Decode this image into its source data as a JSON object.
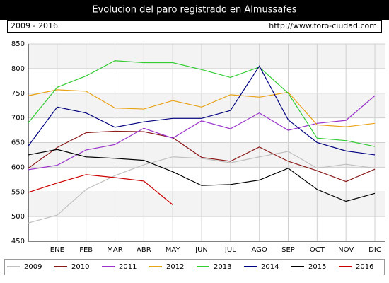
{
  "chart_data": {
    "type": "line",
    "title": "Evolucion del paro registrado en Almussafes",
    "subtitle": "2009 - 2016",
    "source": "http://www.foro-ciudad.com",
    "categories": [
      null,
      "ENE",
      "FEB",
      "MAR",
      "ABR",
      "MAY",
      "JUN",
      "JUL",
      "AGO",
      "SEP",
      "OCT",
      "NOV",
      "DIC"
    ],
    "ylim": [
      450,
      850
    ],
    "yticks": [
      450,
      500,
      550,
      600,
      650,
      700,
      750,
      800,
      850
    ],
    "grid": true,
    "legend": "bottom",
    "series": [
      {
        "name": "2009",
        "color": "#c0c0c0",
        "values": [
          487,
          503,
          555,
          583,
          605,
          621,
          618,
          609,
          621,
          632,
          598,
          606,
          598
        ]
      },
      {
        "name": "2010",
        "color": "#8b1a1a",
        "values": [
          598,
          640,
          670,
          673,
          672,
          660,
          620,
          612,
          641,
          612,
          593,
          571,
          596
        ]
      },
      {
        "name": "2011",
        "color": "#9933cc",
        "values": [
          595,
          604,
          635,
          646,
          679,
          659,
          694,
          678,
          710,
          675,
          689,
          695,
          745
        ]
      },
      {
        "name": "2012",
        "color": "#e8a317",
        "values": [
          745,
          757,
          754,
          720,
          718,
          735,
          722,
          747,
          742,
          752,
          686,
          682,
          689
        ]
      },
      {
        "name": "2013",
        "color": "#33cc33",
        "values": [
          690,
          762,
          785,
          816,
          812,
          812,
          798,
          782,
          803,
          750,
          659,
          654,
          642
        ]
      },
      {
        "name": "2014",
        "color": "#000080",
        "values": [
          643,
          722,
          710,
          681,
          692,
          699,
          699,
          715,
          805,
          696,
          650,
          633,
          625
        ]
      },
      {
        "name": "2015",
        "color": "#000000",
        "values": [
          625,
          636,
          621,
          618,
          614,
          591,
          563,
          565,
          574,
          598,
          555,
          531,
          547
        ]
      },
      {
        "name": "2016",
        "color": "#cc0000",
        "values": [
          549,
          568,
          585,
          579,
          572,
          524,
          null,
          null,
          null,
          null,
          null,
          null,
          null
        ]
      }
    ]
  }
}
